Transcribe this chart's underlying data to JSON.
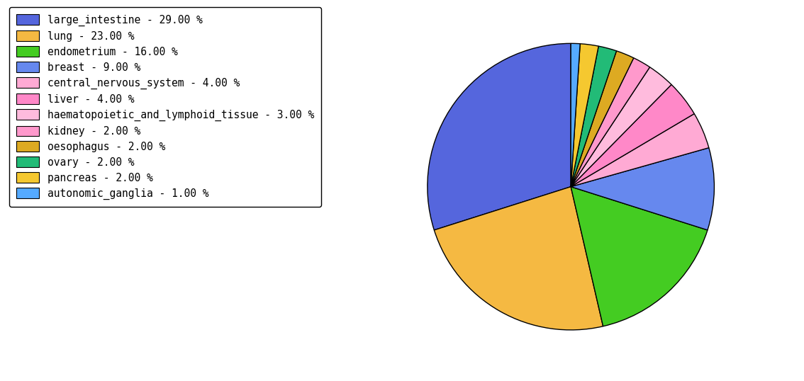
{
  "labels": [
    "large_intestine - 29.00 %",
    "lung - 23.00 %",
    "endometrium - 16.00 %",
    "breast - 9.00 %",
    "central_nervous_system - 4.00 %",
    "liver - 4.00 %",
    "haematopoietic_and_lymphoid_tissue - 3.00 %",
    "kidney - 2.00 %",
    "oesophagus - 2.00 %",
    "ovary - 2.00 %",
    "pancreas - 2.00 %",
    "autonomic_ganglia - 1.00 %"
  ],
  "sizes": [
    29,
    23,
    16,
    9,
    4,
    4,
    3,
    2,
    2,
    2,
    2,
    1
  ],
  "colors": [
    "#5566dd",
    "#f5b942",
    "#44cc22",
    "#6688ee",
    "#ffaad4",
    "#ff88c8",
    "#ffbbdd",
    "#ff99cc",
    "#ddaa22",
    "#22bb77",
    "#f5c830",
    "#55aaff"
  ],
  "figsize": [
    11.34,
    5.38
  ],
  "dpi": 100,
  "legend_fontsize": 10.5,
  "startangle": 90
}
